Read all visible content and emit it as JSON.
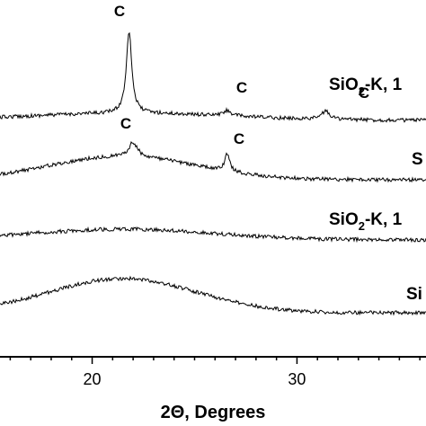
{
  "chart_data": {
    "type": "line",
    "xlabel": "2Θ, Degrees",
    "ylabel": "",
    "xlim": [
      15.5,
      36.3
    ],
    "x_ticks": [
      20,
      30
    ],
    "grid": false,
    "series": [
      {
        "name_parts": [
          "SiO",
          "2",
          "-K, 1"
        ],
        "peaks": [
          {
            "x": 21.8,
            "label": "C"
          },
          {
            "x": 26.6,
            "label": "C"
          },
          {
            "x": 31.4,
            "label": "C"
          }
        ]
      },
      {
        "name_parts": [
          "S",
          "",
          ""
        ],
        "peaks": [
          {
            "x": 22.0,
            "label": "C"
          },
          {
            "x": 26.6,
            "label": "C"
          }
        ]
      },
      {
        "name_parts": [
          "SiO",
          "2",
          "-K, 1"
        ],
        "peaks": []
      },
      {
        "name_parts": [
          "Si",
          "",
          ""
        ],
        "peaks": []
      }
    ]
  }
}
